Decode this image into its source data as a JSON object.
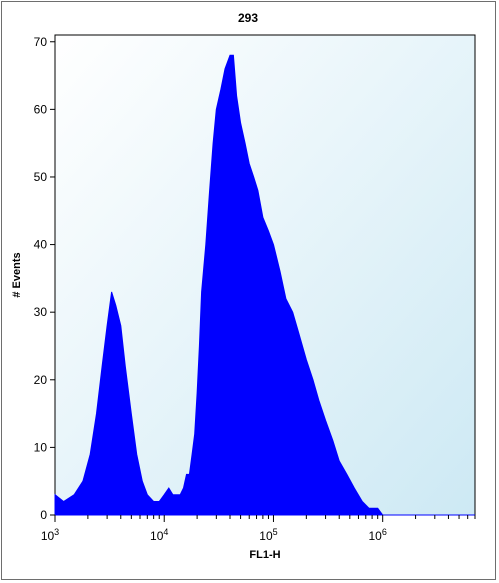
{
  "chart_data": {
    "type": "area",
    "title": "293",
    "xlabel": "FL1-H",
    "ylabel": "# Events",
    "x_scale": "log",
    "xlim": [
      1000,
      7000000
    ],
    "ylim": [
      0,
      71
    ],
    "y_ticks": [
      0,
      10,
      20,
      30,
      40,
      50,
      60,
      70
    ],
    "x_ticks": [
      {
        "value": 1000,
        "base": "10",
        "exp": "3"
      },
      {
        "value": 10000,
        "base": "10",
        "exp": "4"
      },
      {
        "value": 100000,
        "base": "10",
        "exp": "5"
      },
      {
        "value": 1000000,
        "base": "10",
        "exp": "6"
      }
    ],
    "grid": false,
    "background_gradient": [
      "#ffffff",
      "#cde9f4"
    ],
    "fill_color": "#0000ff",
    "series": [
      {
        "x": [
          1000,
          1200,
          1500,
          1800,
          2100,
          2400,
          2700,
          3000,
          3300,
          3600,
          4000,
          4400,
          5000,
          5600,
          6300,
          7000,
          8000,
          9000,
          10000,
          11000,
          12000,
          13000,
          14000,
          15000,
          16000,
          17000,
          18000,
          19000,
          20000,
          21000,
          22000,
          24000,
          26000,
          28000,
          30000,
          33000,
          36000,
          40000,
          43000,
          46000,
          50000,
          55000,
          60000,
          66000,
          72000,
          80000,
          90000,
          100000,
          115000,
          130000,
          150000,
          170000,
          200000,
          230000,
          260000,
          300000,
          350000,
          400000,
          470000,
          550000,
          650000,
          750000,
          900000,
          1000000,
          1500000,
          2000000,
          3000000,
          5000000,
          7000000
        ],
        "values": [
          3,
          2,
          3,
          5,
          9,
          15,
          22,
          28,
          33,
          31,
          28,
          22,
          15,
          9,
          5,
          3,
          2,
          2,
          3,
          4,
          3,
          3,
          3,
          4,
          6,
          6,
          9,
          12,
          18,
          25,
          33,
          40,
          48,
          55,
          60,
          63,
          66,
          68,
          68,
          62,
          58,
          55,
          52,
          50,
          48,
          44,
          42,
          40,
          36,
          32,
          30,
          27,
          23,
          20,
          17,
          14,
          11,
          8,
          6,
          4,
          2,
          1,
          1,
          0,
          0,
          0,
          0,
          0,
          0
        ]
      }
    ]
  }
}
